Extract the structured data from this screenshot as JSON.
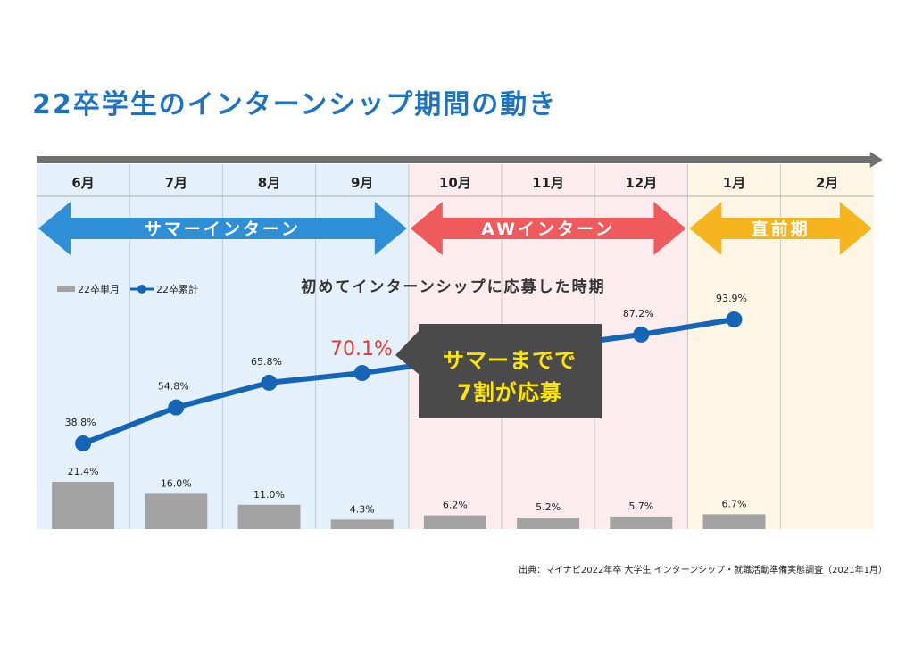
{
  "title": "22卒学生のインターンシップ期間の動き",
  "source": "出典：マイナビ2022年卒 大学生 インターンシップ・就職活動準備実態調査（2021年1月）",
  "phases": [
    {
      "label": "サマーインターン",
      "color": "#2f8fd6",
      "bg": "#e4f1fa"
    },
    {
      "label": "AWインターン",
      "color": "#ef5a5c",
      "bg": "#fdeced"
    },
    {
      "label": "直前期",
      "color": "#f6b51f",
      "bg": "#fdf6e5"
    }
  ],
  "callout": {
    "line1": "サマーまでで",
    "line2": "7割が応募",
    "highlight": "70.1%"
  },
  "colors": {
    "bar": "#a3a3a3",
    "line": "#1565b6",
    "callout_bg": "#4a4a4a",
    "callout_text": "#ffe600",
    "highlight": "#e53935",
    "timeline": "#707070"
  },
  "chart_data": {
    "type": "bar+line",
    "title": "初めてインターンシップに応募した時期",
    "categories": [
      "6月",
      "7月",
      "8月",
      "9月",
      "10月",
      "11月",
      "12月",
      "1月",
      "2月"
    ],
    "series": [
      {
        "name": "22卒単月",
        "type": "bar",
        "values": [
          21.4,
          16.0,
          11.0,
          4.3,
          6.2,
          5.2,
          5.7,
          6.7,
          null
        ],
        "labels": [
          "21.4%",
          "16.0%",
          "11.0%",
          "4.3%",
          "6.2%",
          "5.2%",
          "5.7%",
          "6.7%",
          ""
        ]
      },
      {
        "name": "22卒累計",
        "type": "line",
        "values": [
          38.8,
          54.8,
          65.8,
          70.1,
          null,
          null,
          87.2,
          93.9,
          null
        ],
        "labels": [
          "38.8%",
          "54.8%",
          "65.8%",
          "",
          "",
          "",
          "87.2%",
          "93.9%",
          ""
        ]
      }
    ],
    "legend_position": "top-left",
    "grid": false
  }
}
